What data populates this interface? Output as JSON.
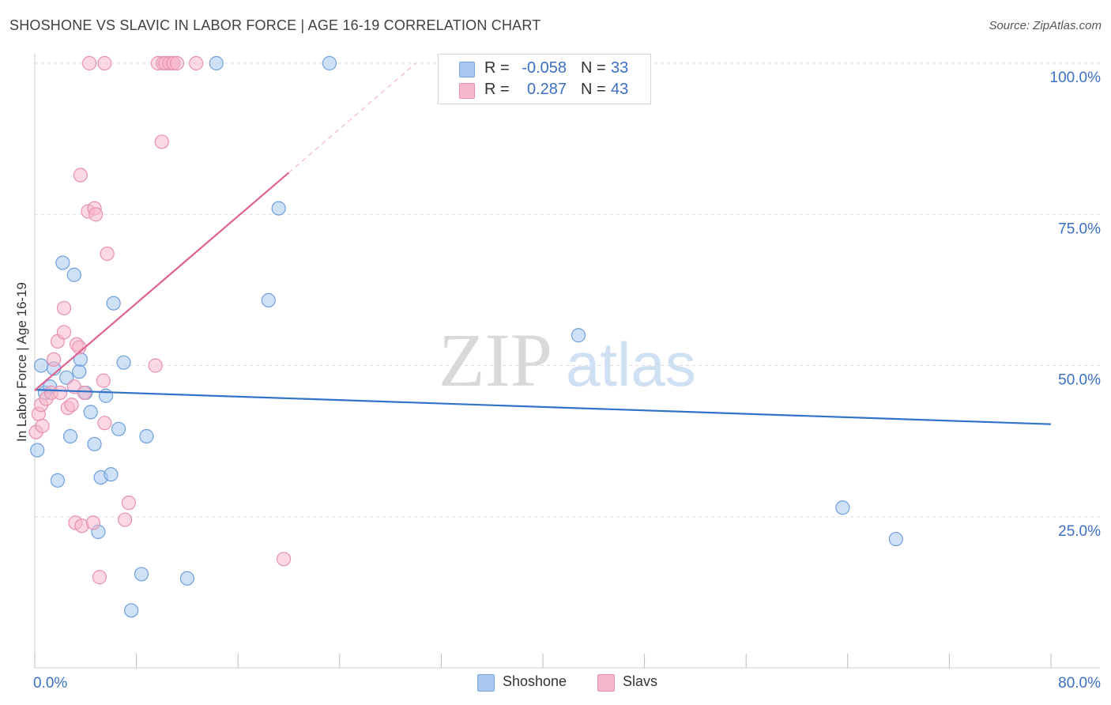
{
  "title": "SHOSHONE VS SLAVIC IN LABOR FORCE | AGE 16-19 CORRELATION CHART",
  "source": "Source: ZipAtlas.com",
  "watermark": {
    "zip": "ZIP",
    "atlas": "atlas"
  },
  "legend_stats": [
    {
      "r_label": "R =",
      "r_value": "-0.058",
      "n_label": "N =",
      "n_value": "33",
      "color": "#a8c8f0",
      "border": "#7aa6e0"
    },
    {
      "r_label": "R =",
      "r_value": "0.287",
      "n_label": "N =",
      "n_value": "43",
      "color": "#f7b8cc",
      "border": "#e891ad"
    }
  ],
  "bottom_legend": [
    {
      "label": "Shoshone",
      "color": "#a8c8f0",
      "border": "#7aa6e0"
    },
    {
      "label": "Slavs",
      "color": "#f7b8cc",
      "border": "#e891ad"
    }
  ],
  "chart_data": {
    "type": "scatter",
    "title": "SHOSHONE VS SLAVIC IN LABOR FORCE | AGE 16-19 CORRELATION CHART",
    "xlabel": "",
    "ylabel": "In Labor Force | Age 16-19",
    "xlim": [
      0,
      80
    ],
    "ylim": [
      0,
      100
    ],
    "x_tick_labels": [
      {
        "value": 0,
        "label": "0.0%"
      },
      {
        "value": 80,
        "label": "80.0%"
      }
    ],
    "y_tick_labels": [
      {
        "value": 25,
        "label": "25.0%"
      },
      {
        "value": 50,
        "label": "50.0%"
      },
      {
        "value": 75,
        "label": "75.0%"
      },
      {
        "value": 100,
        "label": "100.0%"
      }
    ],
    "grid": true,
    "legend_position": "top-center",
    "series": [
      {
        "name": "Shoshone",
        "color": "#a8c8f0",
        "stroke": "#6e9fdc",
        "trend_color": "#2f72c8",
        "trend": {
          "x_start": 0,
          "y_start": 46.0,
          "x_end": 80,
          "y_end": 40.3
        },
        "points": [
          [
            0.2,
            36.0
          ],
          [
            0.5,
            50.0
          ],
          [
            0.8,
            45.5
          ],
          [
            1.2,
            46.5
          ],
          [
            1.5,
            49.5
          ],
          [
            1.8,
            31.0
          ],
          [
            2.2,
            67.0
          ],
          [
            2.5,
            48.0
          ],
          [
            2.8,
            38.3
          ],
          [
            3.1,
            65.0
          ],
          [
            3.5,
            49.0
          ],
          [
            3.6,
            51.0
          ],
          [
            4.0,
            45.5
          ],
          [
            4.4,
            42.3
          ],
          [
            4.7,
            37.0
          ],
          [
            5.0,
            22.5
          ],
          [
            5.2,
            31.5
          ],
          [
            5.6,
            45.0
          ],
          [
            6.0,
            32.0
          ],
          [
            6.2,
            60.3
          ],
          [
            6.6,
            39.5
          ],
          [
            7.0,
            50.5
          ],
          [
            7.6,
            9.5
          ],
          [
            8.4,
            15.5
          ],
          [
            8.8,
            38.3
          ],
          [
            12.0,
            14.8
          ],
          [
            14.3,
            100.0
          ],
          [
            18.4,
            60.8
          ],
          [
            19.2,
            76.0
          ],
          [
            23.2,
            100.0
          ],
          [
            42.8,
            55.0
          ],
          [
            63.6,
            26.5
          ],
          [
            67.8,
            21.3
          ]
        ]
      },
      {
        "name": "Slavs",
        "color": "#f7b8cc",
        "stroke": "#e891ad",
        "trend_color": "#e0628f",
        "trend": {
          "x_start": 0,
          "y_start": 45.9,
          "x_end": 20,
          "y_end": 81.9
        },
        "trend_dashed_to": {
          "x": 30,
          "y": 100
        },
        "points": [
          [
            0.1,
            39.0
          ],
          [
            0.3,
            42.0
          ],
          [
            0.5,
            43.5
          ],
          [
            0.6,
            40.0
          ],
          [
            0.9,
            44.5
          ],
          [
            1.3,
            45.5
          ],
          [
            1.5,
            51.0
          ],
          [
            1.8,
            54.0
          ],
          [
            2.0,
            45.5
          ],
          [
            2.3,
            55.5
          ],
          [
            2.3,
            59.5
          ],
          [
            2.6,
            43.0
          ],
          [
            2.9,
            43.5
          ],
          [
            3.1,
            46.5
          ],
          [
            3.2,
            24.0
          ],
          [
            3.3,
            53.5
          ],
          [
            3.5,
            53.0
          ],
          [
            3.6,
            81.5
          ],
          [
            3.7,
            23.5
          ],
          [
            3.9,
            45.5
          ],
          [
            4.2,
            75.5
          ],
          [
            4.3,
            100.0
          ],
          [
            4.6,
            24.0
          ],
          [
            4.7,
            76.0
          ],
          [
            4.8,
            75.0
          ],
          [
            5.1,
            15.0
          ],
          [
            5.4,
            47.5
          ],
          [
            5.5,
            40.5
          ],
          [
            5.5,
            100.0
          ],
          [
            5.7,
            68.5
          ],
          [
            7.1,
            24.5
          ],
          [
            7.4,
            27.3
          ],
          [
            9.5,
            50.0
          ],
          [
            9.7,
            100.0
          ],
          [
            10.0,
            87.0
          ],
          [
            10.1,
            100.0
          ],
          [
            10.3,
            100.0
          ],
          [
            10.6,
            100.0
          ],
          [
            10.9,
            100.0
          ],
          [
            10.9,
            100.0
          ],
          [
            11.2,
            100.0
          ],
          [
            12.7,
            100.0
          ],
          [
            19.6,
            18.0
          ]
        ]
      }
    ]
  }
}
